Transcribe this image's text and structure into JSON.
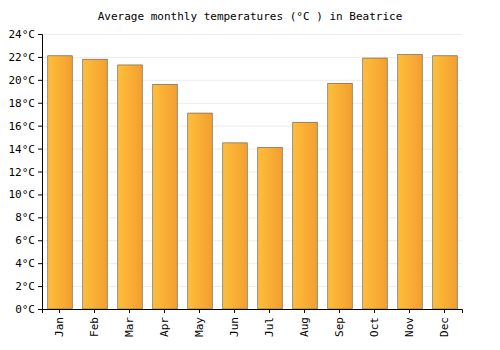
{
  "chart_data": {
    "type": "bar",
    "title": "Average monthly temperatures (°C ) in Beatrice",
    "categories": [
      "Jan",
      "Feb",
      "Mar",
      "Apr",
      "May",
      "Jun",
      "Jul",
      "Aug",
      "Sep",
      "Oct",
      "Nov",
      "Dec"
    ],
    "values": [
      22.1,
      21.8,
      21.3,
      19.6,
      17.1,
      14.5,
      14.1,
      16.3,
      19.7,
      21.9,
      22.2,
      22.1
    ],
    "color": "#ffa833",
    "ylim": [
      0,
      24
    ],
    "yticks": [
      {
        "value": 0,
        "label": "0°C"
      },
      {
        "value": 2,
        "label": "2°C"
      },
      {
        "value": 4,
        "label": "4°C"
      },
      {
        "value": 6,
        "label": "6°C"
      },
      {
        "value": 8,
        "label": "8°C"
      },
      {
        "value": 10,
        "label": "10°C"
      },
      {
        "value": 12,
        "label": "12°C"
      },
      {
        "value": 14,
        "label": "14°C"
      },
      {
        "value": 16,
        "label": "16°C"
      },
      {
        "value": 18,
        "label": "18°C"
      },
      {
        "value": 20,
        "label": "20°C"
      },
      {
        "value": 22,
        "label": "22°C"
      },
      {
        "value": 24,
        "label": "24°C"
      }
    ],
    "grid": true
  }
}
